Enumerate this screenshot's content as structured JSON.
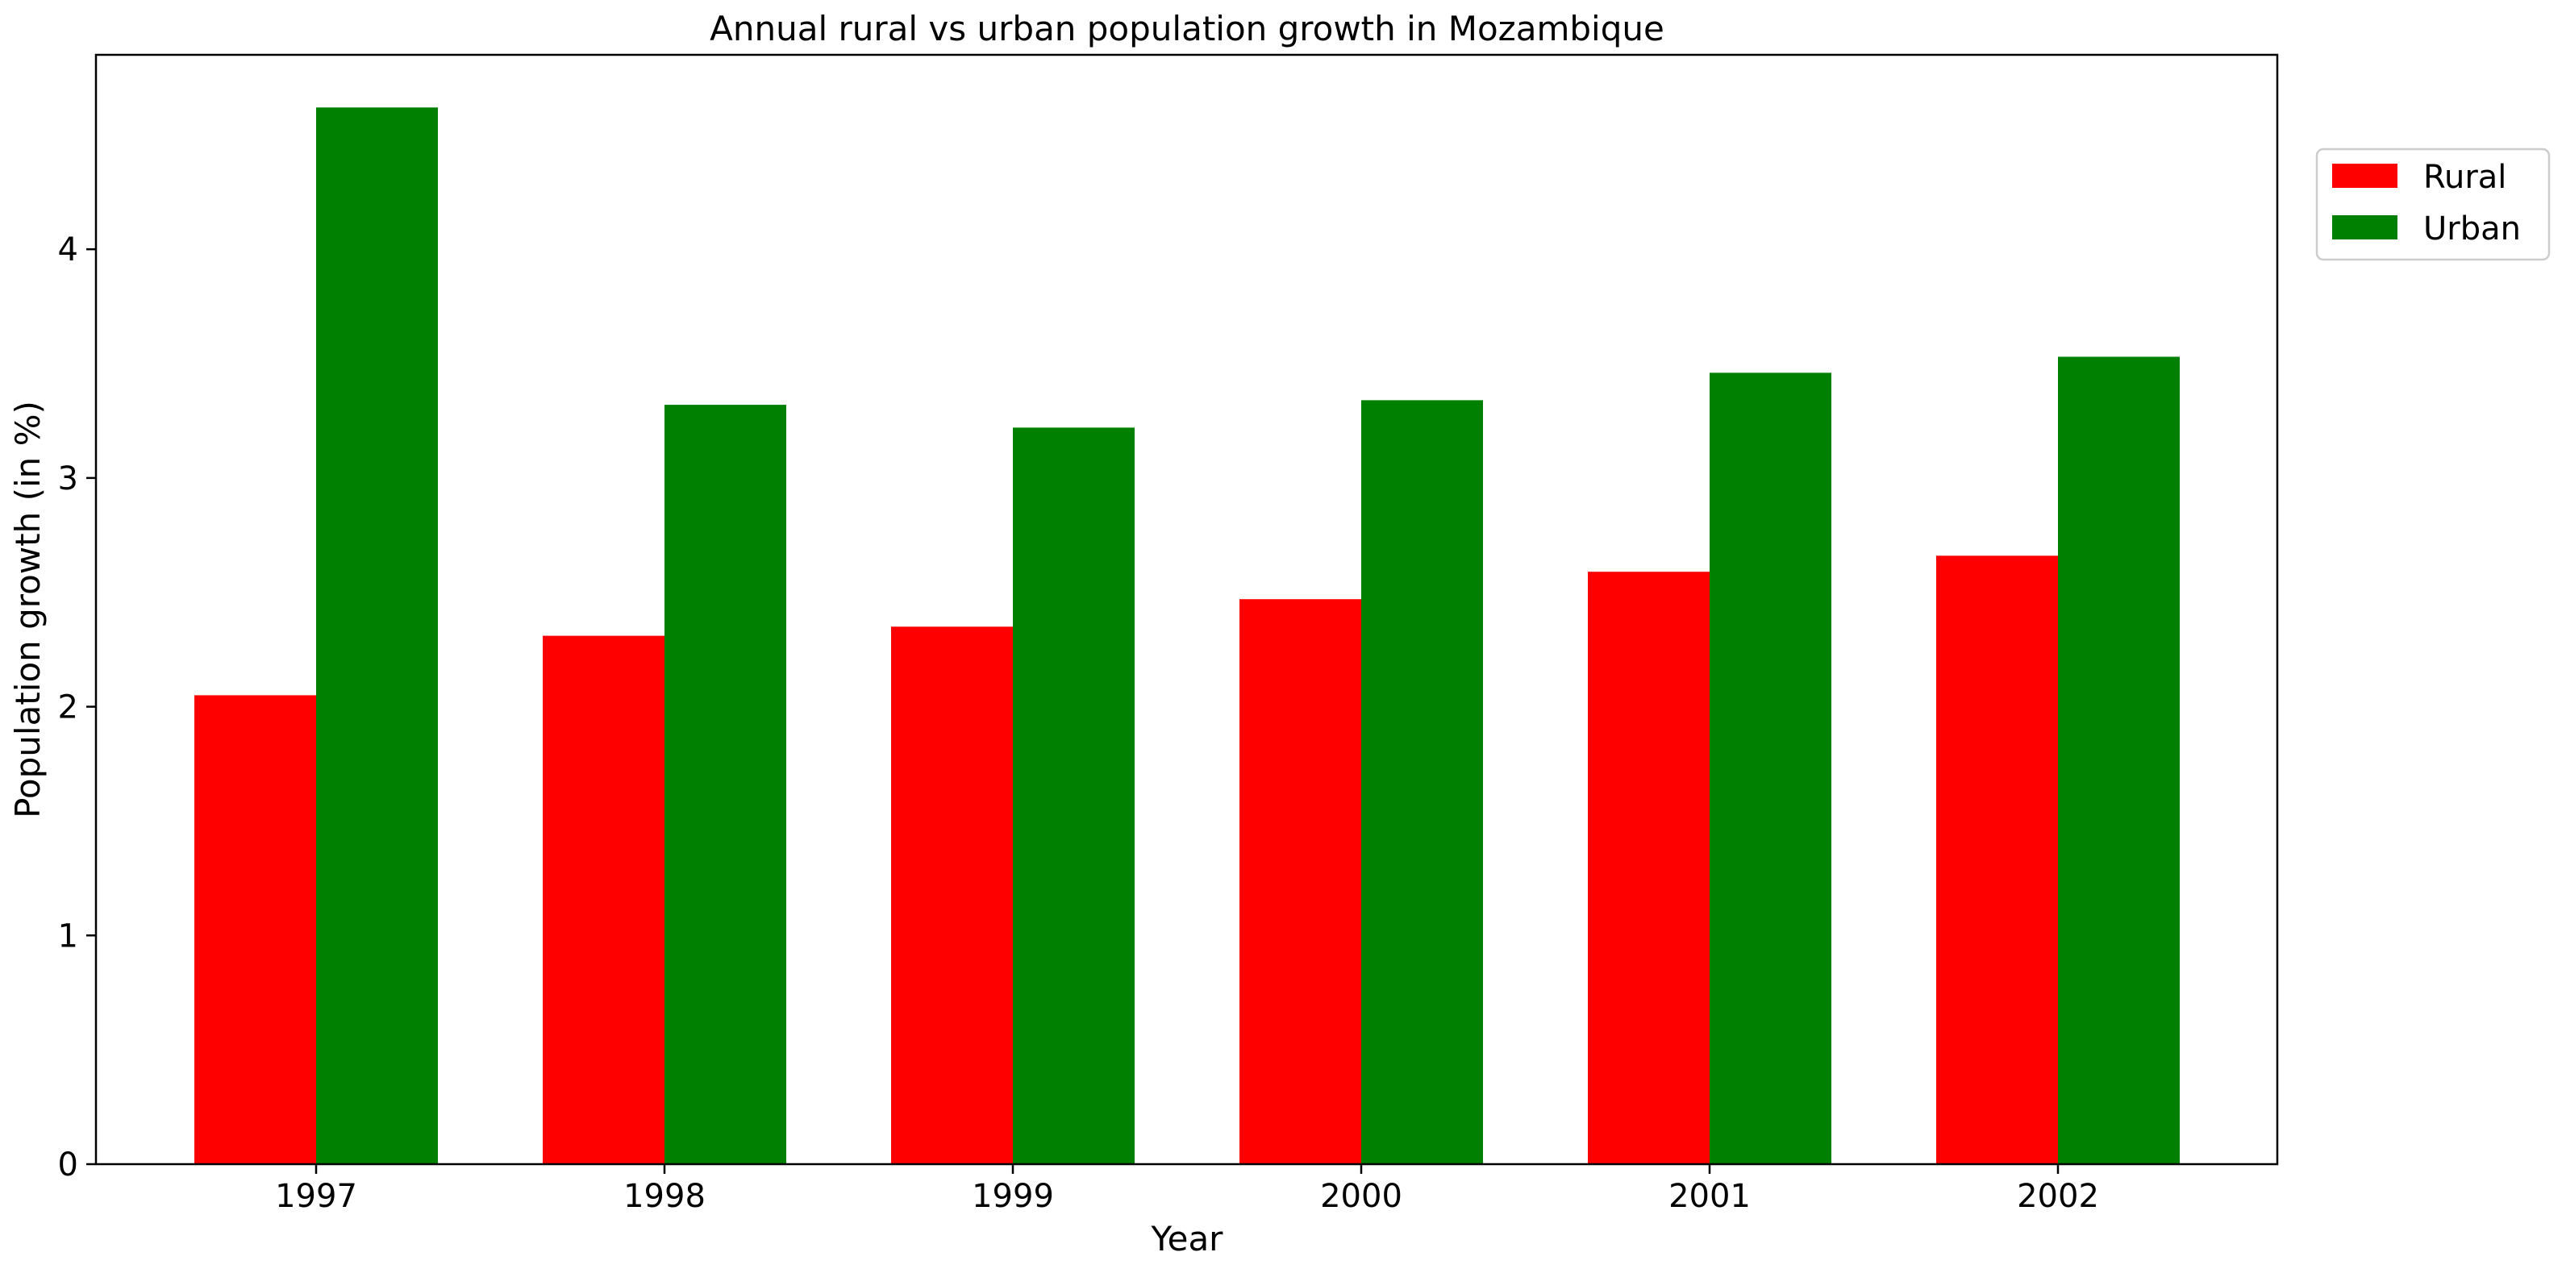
{
  "chart_data": {
    "type": "bar",
    "title": "Annual rural vs urban population growth in Mozambique",
    "xlabel": "Year",
    "ylabel": "Population growth (in %)",
    "categories": [
      "1997",
      "1998",
      "1999",
      "2000",
      "2001",
      "2002"
    ],
    "series": [
      {
        "name": "Rural",
        "color": "#ff0000",
        "values": [
          2.05,
          2.31,
          2.35,
          2.47,
          2.59,
          2.66
        ]
      },
      {
        "name": "Urban",
        "color": "#008000",
        "values": [
          4.62,
          3.32,
          3.22,
          3.34,
          3.46,
          3.53
        ]
      }
    ],
    "ylim": [
      0,
      4.85
    ],
    "yticks": [
      "0",
      "1",
      "2",
      "3",
      "4"
    ],
    "grid": false,
    "legend_position": "outside-top-right"
  }
}
